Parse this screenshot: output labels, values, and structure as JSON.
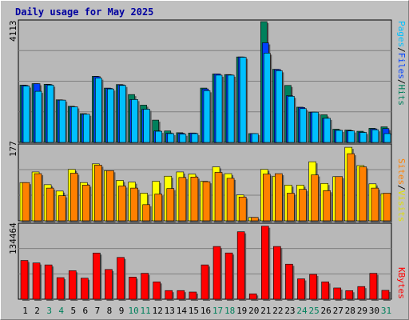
{
  "title": "Daily usage for May 2025",
  "colors": {
    "background": "#c0c0c0",
    "plot_bg": "#b8b8b8",
    "title": "#0000a0",
    "hits": "#00805c",
    "files": "#0040ff",
    "pages": "#00c0ff",
    "visits": "#ffff00",
    "sites": "#ff8000",
    "kbytes": "#ff0000",
    "weekend_label": "#00805c"
  },
  "chart_data": [
    {
      "type": "bar",
      "panel": "hits_files_pages",
      "ymax_label": "4113",
      "ylim": [
        0,
        4113
      ],
      "legend": [
        "Pages",
        "/",
        "Files",
        "/",
        "Hits"
      ],
      "categories": [
        "1",
        "2",
        "3",
        "4",
        "5",
        "6",
        "7",
        "8",
        "9",
        "10",
        "11",
        "12",
        "13",
        "14",
        "15",
        "16",
        "17",
        "18",
        "19",
        "20",
        "21",
        "22",
        "23",
        "24",
        "25",
        "26",
        "27",
        "28",
        "29",
        "30",
        "31"
      ],
      "series": [
        {
          "name": "Hits",
          "values": [
            1950,
            2000,
            1980,
            1450,
            1230,
            980,
            2250,
            1850,
            1970,
            1630,
            1270,
            760,
            390,
            330,
            320,
            1850,
            2330,
            2310,
            2910,
            300,
            4113,
            2490,
            1940,
            1200,
            1030,
            940,
            450,
            420,
            380,
            480,
            530
          ]
        },
        {
          "name": "Files",
          "values": [
            1940,
            2000,
            1970,
            1440,
            1210,
            960,
            2240,
            1840,
            1960,
            1460,
            1130,
            390,
            310,
            310,
            320,
            1820,
            2330,
            2300,
            2910,
            300,
            3390,
            2480,
            1590,
            1190,
            1030,
            820,
            420,
            400,
            350,
            460,
            470
          ]
        },
        {
          "name": "Pages",
          "values": [
            1920,
            1740,
            1950,
            1440,
            1210,
            960,
            2190,
            1820,
            1940,
            1460,
            1130,
            380,
            300,
            280,
            300,
            1760,
            2290,
            2290,
            2900,
            300,
            3040,
            2440,
            1570,
            1150,
            1030,
            820,
            410,
            390,
            340,
            430,
            300
          ]
        }
      ]
    },
    {
      "type": "bar",
      "panel": "visits_sites",
      "ymax_label": "177",
      "ylim": [
        0,
        177
      ],
      "legend": [
        "Sites",
        "/",
        "Visits"
      ],
      "categories": [
        "1",
        "2",
        "3",
        "4",
        "5",
        "6",
        "7",
        "8",
        "9",
        "10",
        "11",
        "12",
        "13",
        "14",
        "15",
        "16",
        "17",
        "18",
        "19",
        "20",
        "21",
        "22",
        "23",
        "24",
        "25",
        "26",
        "27",
        "28",
        "29",
        "30",
        "31"
      ],
      "series": [
        {
          "name": "Visits",
          "values": [
            90,
            115,
            85,
            70,
            121,
            90,
            134,
            118,
            95,
            91,
            65,
            93,
            105,
            115,
            110,
            93,
            127,
            111,
            61,
            8,
            121,
            105,
            84,
            84,
            139,
            88,
            104,
            173,
            130,
            87,
            64
          ]
        },
        {
          "name": "Sites",
          "values": [
            90,
            111,
            77,
            59,
            112,
            84,
            131,
            118,
            82,
            77,
            38,
            63,
            76,
            102,
            103,
            92,
            114,
            100,
            56,
            8,
            110,
            111,
            65,
            74,
            108,
            71,
            104,
            158,
            127,
            77,
            65
          ]
        }
      ]
    },
    {
      "type": "bar",
      "panel": "kbytes",
      "ymax_label": "134464",
      "ylim": [
        0,
        134464
      ],
      "legend": [
        "KBytes"
      ],
      "categories": [
        "1",
        "2",
        "3",
        "4",
        "5",
        "6",
        "7",
        "8",
        "9",
        "10",
        "11",
        "12",
        "13",
        "14",
        "15",
        "16",
        "17",
        "18",
        "19",
        "20",
        "21",
        "22",
        "23",
        "24",
        "25",
        "26",
        "27",
        "28",
        "29",
        "30",
        "31"
      ],
      "series": [
        {
          "name": "KBytes",
          "values": [
            70000,
            65500,
            62000,
            39000,
            51500,
            38000,
            83500,
            53700,
            75500,
            40000,
            46800,
            31300,
            15600,
            15600,
            13000,
            62000,
            95300,
            83600,
            121900,
            9700,
            132000,
            95300,
            63300,
            36800,
            44900,
            31300,
            20300,
            15500,
            22900,
            46800,
            16000
          ]
        }
      ]
    }
  ],
  "x_axis": {
    "labels": [
      "1",
      "2",
      "3",
      "4",
      "5",
      "6",
      "7",
      "8",
      "9",
      "10",
      "11",
      "12",
      "13",
      "14",
      "15",
      "16",
      "17",
      "18",
      "19",
      "20",
      "21",
      "22",
      "23",
      "24",
      "25",
      "26",
      "27",
      "28",
      "29",
      "30",
      "31"
    ],
    "weekend_days": [
      "3",
      "4",
      "10",
      "11",
      "17",
      "18",
      "24",
      "25",
      "31"
    ]
  }
}
